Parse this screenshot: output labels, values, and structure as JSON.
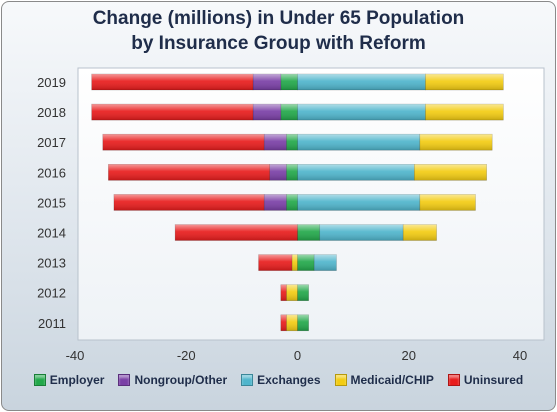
{
  "title_line1": "Change (millions) in Under 65 Population",
  "title_line2": "by Insurance Group with Reform",
  "chart_data": {
    "type": "bar",
    "orientation": "horizontal",
    "stacked": true,
    "title": "Change (millions) in Under 65 Population by Insurance Group with Reform",
    "categories": [
      "2011",
      "2012",
      "2013",
      "2014",
      "2015",
      "2016",
      "2017",
      "2018",
      "2019"
    ],
    "xlim": [
      -40,
      40
    ],
    "x_ticks": [
      -40,
      -20,
      0,
      20,
      40
    ],
    "grid": false,
    "legend_position": "bottom",
    "series": [
      {
        "name": "Employer",
        "color": "#22a84a",
        "values": [
          2,
          2,
          3,
          4,
          -2,
          -2,
          -2,
          -3,
          -3
        ]
      },
      {
        "name": "Nongroup/Other",
        "color": "#7a3fa6",
        "values": [
          0,
          0,
          0,
          0,
          -4,
          -3,
          -4,
          -5,
          -5
        ]
      },
      {
        "name": "Exchanges",
        "color": "#4fb5cc",
        "values": [
          0,
          0,
          4,
          15,
          22,
          21,
          22,
          23,
          23
        ]
      },
      {
        "name": "Medicaid/CHIP",
        "color": "#f3cc12",
        "values": [
          -2,
          -2,
          -1,
          6,
          10,
          13,
          13,
          14,
          14
        ]
      },
      {
        "name": "Uninsured",
        "color": "#e81c1c",
        "values": [
          -1,
          -1,
          -6,
          -22,
          -27,
          -29,
          -29,
          -29,
          -29
        ]
      }
    ]
  }
}
